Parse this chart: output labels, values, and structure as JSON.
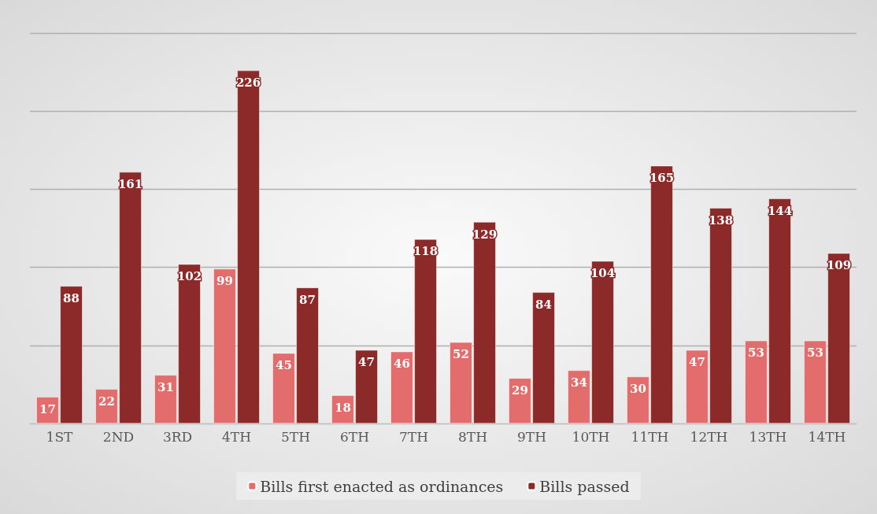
{
  "chart_data": {
    "type": "bar",
    "categories": [
      "1ST",
      "2ND",
      "3RD",
      "4TH",
      "5TH",
      "6TH",
      "7TH",
      "8TH",
      "9TH",
      "10TH",
      "11TH",
      "12TH",
      "13TH",
      "14TH"
    ],
    "series": [
      {
        "name": "Bills first enacted as ordinances",
        "color": "#e36c6c",
        "values": [
          17,
          22,
          31,
          99,
          45,
          18,
          46,
          52,
          29,
          34,
          30,
          47,
          53,
          53
        ]
      },
      {
        "name": "Bills passed",
        "color": "#8c2a2a",
        "values": [
          88,
          161,
          102,
          226,
          87,
          47,
          118,
          129,
          84,
          104,
          165,
          138,
          144,
          109
        ]
      }
    ],
    "ylim": [
      0,
      250
    ],
    "yticks": [
      {
        "value": 0,
        "label": null
      },
      {
        "value": 50,
        "label": null
      },
      {
        "value": 100,
        "label": null
      },
      {
        "value": 150,
        "label": null
      },
      {
        "value": 200,
        "label": null
      },
      {
        "value": 250,
        "label": null
      }
    ],
    "tick_labels": "x",
    "grid": "y",
    "legend": "bottom",
    "data_labels": true
  }
}
